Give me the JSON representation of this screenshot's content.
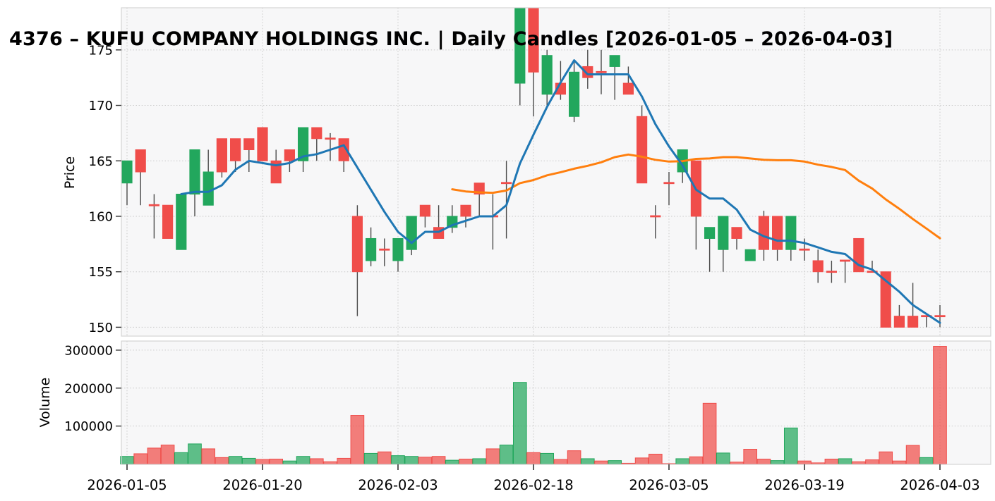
{
  "title": "4376 – KUFU COMPANY HOLDINGS INC. | Daily Candles [2026-01-05 – 2026-04-03]",
  "price_panel": {
    "ylabel": "Price",
    "yticks": [
      150,
      155,
      160,
      165,
      170,
      175
    ]
  },
  "volume_panel": {
    "ylabel": "Volume",
    "yticks": [
      100000,
      200000,
      300000
    ]
  },
  "x_axis": {
    "tick_labels": [
      "2026-01-05",
      "2026-01-20",
      "2026-02-03",
      "2026-02-18",
      "2026-03-05",
      "2026-03-19",
      "2026-04-03"
    ],
    "tick_indices": [
      0,
      10,
      20,
      30,
      40,
      50,
      60
    ]
  },
  "colors": {
    "up": "#22a75d",
    "down": "#f04d4a",
    "ma_short": "#1f77b4",
    "ma_long": "#ff7f0e",
    "wick": "#4a4a4a",
    "grid": "#c9c9c9",
    "spine": "#d4d4d4",
    "tick": "#333333",
    "axes_bg": "#f7f7f8",
    "fig_bg": "#ffffff",
    "text": "#000000"
  },
  "chart_data": {
    "type": "candlestick+volume",
    "title": "4376 – KUFU COMPANY HOLDINGS INC. | Daily Candles [2026-01-05 – 2026-04-03]",
    "ylabel_price": "Price",
    "ylabel_volume": "Volume",
    "grid": true,
    "legend": false,
    "ma_short_window": 5,
    "ma_long_window": 25,
    "price_ylim": [
      149.2,
      178.8
    ],
    "volume_ylim": [
      0,
      324000
    ],
    "dates": [
      "2026-01-05",
      "2026-01-06",
      "2026-01-07",
      "2026-01-08",
      "2026-01-09",
      "2026-01-13",
      "2026-01-14",
      "2026-01-15",
      "2026-01-16",
      "2026-01-19",
      "2026-01-20",
      "2026-01-21",
      "2026-01-22",
      "2026-01-23",
      "2026-01-26",
      "2026-01-27",
      "2026-01-28",
      "2026-01-29",
      "2026-01-30",
      "2026-02-02",
      "2026-02-03",
      "2026-02-04",
      "2026-02-05",
      "2026-02-06",
      "2026-02-09",
      "2026-02-10",
      "2026-02-12",
      "2026-02-13",
      "2026-02-16",
      "2026-02-17",
      "2026-02-18",
      "2026-02-19",
      "2026-02-20",
      "2026-02-24",
      "2026-02-25",
      "2026-02-26",
      "2026-02-27",
      "2026-03-02",
      "2026-03-03",
      "2026-03-04",
      "2026-03-05",
      "2026-03-06",
      "2026-03-09",
      "2026-03-10",
      "2026-03-11",
      "2026-03-12",
      "2026-03-13",
      "2026-03-16",
      "2026-03-17",
      "2026-03-18",
      "2026-03-19",
      "2026-03-23",
      "2026-03-24",
      "2026-03-25",
      "2026-03-26",
      "2026-03-27",
      "2026-03-30",
      "2026-03-31",
      "2026-04-01",
      "2026-04-02",
      "2026-04-03"
    ],
    "open": [
      163,
      166,
      161,
      161,
      157,
      162,
      161,
      167,
      167,
      167,
      168,
      165,
      166,
      165,
      168,
      167,
      167,
      160,
      156,
      157,
      156,
      157,
      161,
      159,
      159,
      161,
      163,
      160,
      163,
      172,
      178.8,
      171,
      172,
      169,
      173.5,
      173,
      173.5,
      172,
      169,
      160,
      163,
      164,
      165,
      158,
      157,
      159,
      156,
      160,
      160,
      157,
      157,
      156,
      155,
      156,
      158,
      155,
      155,
      151,
      151,
      151,
      151
    ],
    "high": [
      165,
      166,
      162,
      161,
      162,
      166,
      166,
      167,
      167,
      167,
      168,
      166,
      166,
      168,
      168,
      167.5,
      167,
      161,
      159,
      158,
      158,
      160,
      161,
      161,
      161,
      161,
      163,
      162,
      165,
      178.8,
      178.8,
      175,
      174,
      174,
      175,
      175,
      174.5,
      173.5,
      170,
      161,
      164,
      166,
      165,
      159,
      160,
      159,
      157,
      160.5,
      160,
      160,
      158,
      157,
      156,
      156,
      158,
      156,
      155,
      152,
      154,
      151,
      152
    ],
    "low": [
      161,
      161,
      158,
      158,
      157,
      160,
      161,
      163.5,
      164,
      164,
      165,
      163,
      164,
      164,
      165,
      165,
      164,
      151,
      155.5,
      155.5,
      155,
      156.5,
      159,
      158,
      158.5,
      159,
      160,
      157,
      158,
      170,
      169,
      170,
      170.5,
      168.5,
      171.5,
      171,
      170.5,
      171,
      163,
      158,
      161,
      163,
      157,
      155,
      155,
      157,
      156,
      156,
      156,
      156,
      156,
      154,
      154,
      154,
      155,
      155,
      150,
      150,
      150,
      150,
      150
    ],
    "close": [
      165,
      164,
      161,
      158,
      162,
      166,
      164,
      164,
      165,
      166,
      165,
      163,
      165,
      168,
      167,
      167,
      165,
      155,
      158,
      157,
      158,
      160,
      160,
      158,
      160,
      160,
      162,
      160,
      163,
      178.8,
      173,
      174.5,
      171,
      173,
      172.5,
      173,
      174.5,
      171,
      163,
      160,
      163,
      166,
      160,
      159,
      160,
      158,
      157,
      157,
      157,
      160,
      157,
      155,
      155,
      156,
      155,
      155,
      150,
      150,
      150,
      151,
      151
    ],
    "volume": [
      20000,
      27000,
      42000,
      50000,
      30000,
      53000,
      40000,
      17000,
      20000,
      15000,
      12000,
      13000,
      8000,
      20000,
      14000,
      6000,
      15000,
      128000,
      28000,
      32000,
      22000,
      20000,
      18000,
      20000,
      10000,
      13000,
      14000,
      40000,
      50000,
      215000,
      30000,
      28000,
      12000,
      35000,
      14000,
      8000,
      9000,
      2000,
      16000,
      26000,
      1000,
      14000,
      19000,
      160000,
      29000,
      5000,
      39000,
      13000,
      9000,
      95000,
      8000,
      3000,
      13000,
      14000,
      6000,
      11000,
      32000,
      8000,
      49000,
      17000,
      310000
    ],
    "volume_dir": [
      "u",
      "d",
      "d",
      "d",
      "u",
      "u",
      "d",
      "d",
      "u",
      "u",
      "d",
      "d",
      "u",
      "u",
      "d",
      "d",
      "d",
      "d",
      "u",
      "d",
      "u",
      "u",
      "d",
      "d",
      "u",
      "d",
      "u",
      "d",
      "u",
      "u",
      "d",
      "u",
      "d",
      "d",
      "u",
      "d",
      "u",
      "d",
      "d",
      "d",
      "d",
      "u",
      "d",
      "d",
      "u",
      "d",
      "d",
      "d",
      "u",
      "u",
      "d",
      "d",
      "d",
      "u",
      "d",
      "d",
      "d",
      "d",
      "d",
      "u",
      "d"
    ]
  }
}
